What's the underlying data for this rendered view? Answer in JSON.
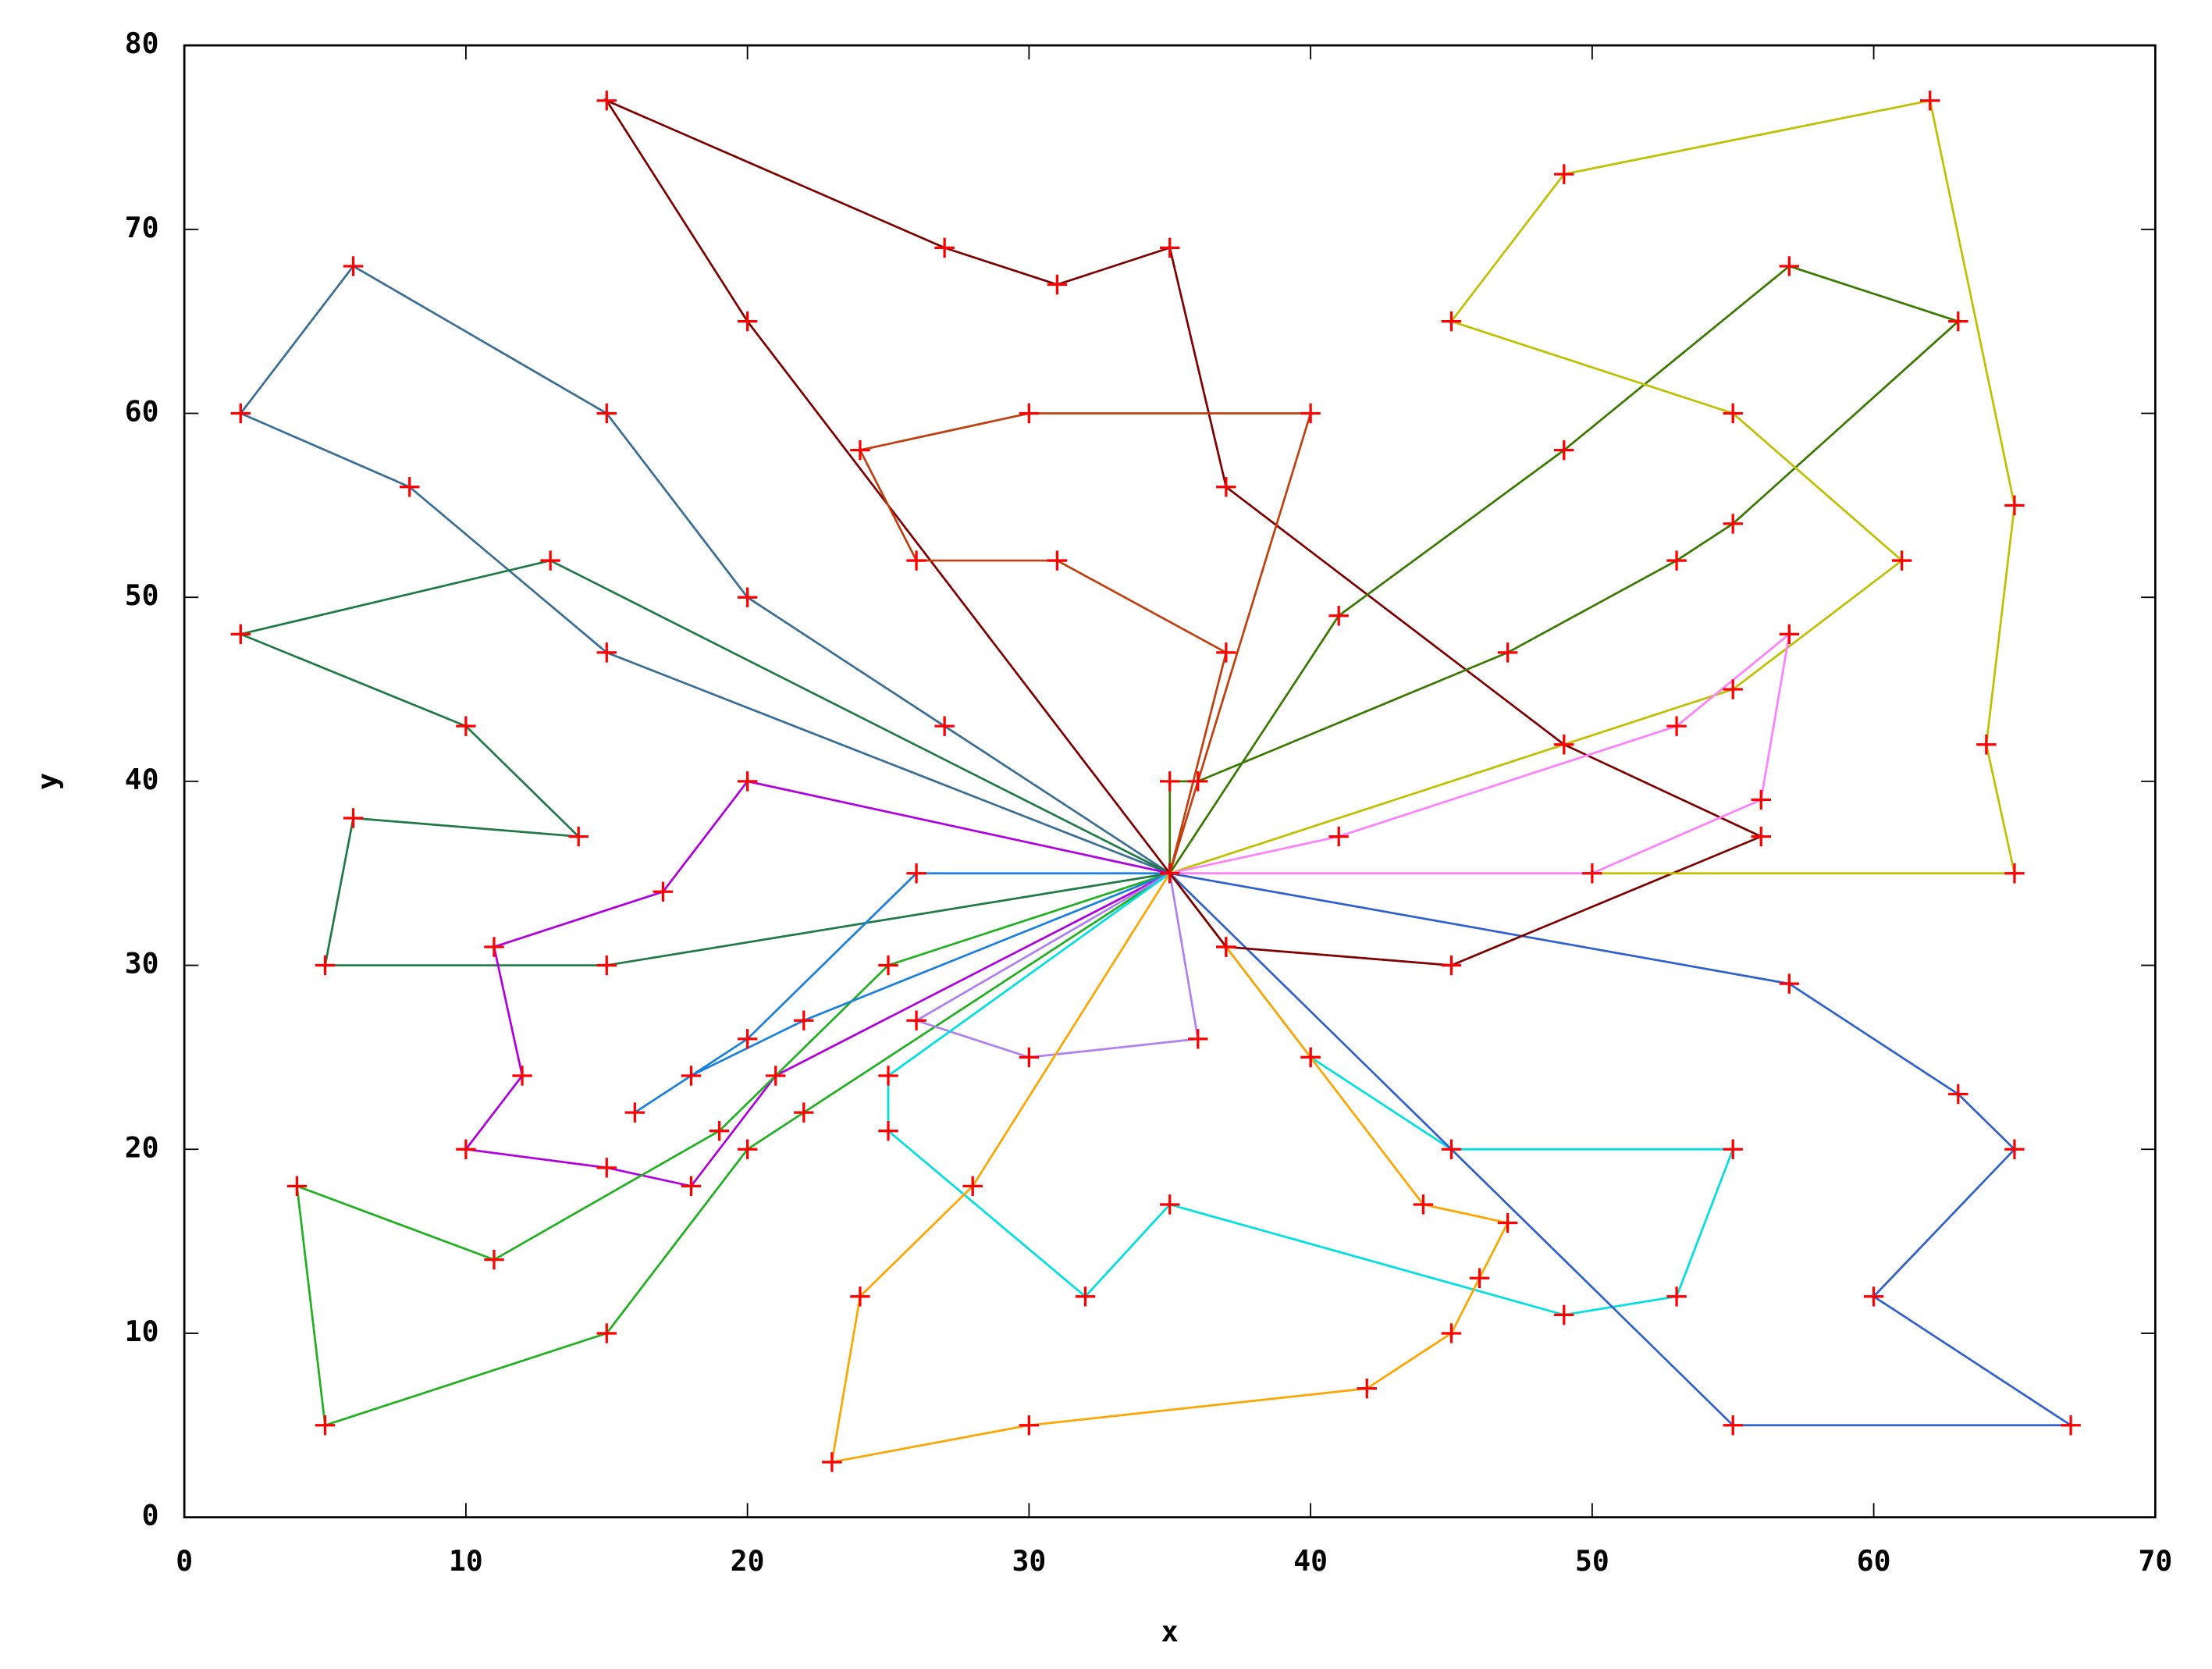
{
  "chart_data": {
    "type": "line",
    "xlabel": "x",
    "ylabel": "y",
    "xlim": [
      0,
      70
    ],
    "ylim": [
      0,
      80
    ],
    "xticks": [
      0,
      10,
      20,
      30,
      40,
      50,
      60,
      70
    ],
    "yticks": [
      0,
      10,
      20,
      30,
      40,
      50,
      60,
      70,
      80
    ],
    "grid": false,
    "marker_color": "#ff0000",
    "series": [
      {
        "color": "#3a6e96",
        "x": [
          35,
          27,
          20,
          15,
          6,
          2,
          8,
          15,
          35
        ],
        "y": [
          35,
          43,
          50,
          60,
          68,
          60,
          56,
          47,
          35
        ]
      },
      {
        "color": "#1f7a45",
        "x": [
          35,
          13,
          2,
          10,
          14,
          6,
          5,
          15,
          35
        ],
        "y": [
          35,
          52,
          48,
          43,
          37,
          38,
          30,
          30,
          35
        ]
      },
      {
        "color": "#b000e0",
        "x": [
          35,
          20,
          17,
          11,
          12,
          10,
          15,
          18,
          21,
          35
        ],
        "y": [
          35,
          40,
          34,
          31,
          24,
          20,
          19,
          18,
          24,
          35
        ]
      },
      {
        "color": "#20b020",
        "x": [
          35,
          25,
          19,
          11,
          4,
          5,
          15,
          20,
          22,
          35
        ],
        "y": [
          35,
          30,
          21,
          14,
          18,
          5,
          10,
          20,
          22,
          35
        ]
      },
      {
        "color": "#1a80e0",
        "x": [
          35,
          26,
          20,
          16,
          18,
          22,
          35
        ],
        "y": [
          35,
          35,
          26,
          22,
          24,
          27,
          35
        ]
      },
      {
        "color": "#b080f0",
        "x": [
          35,
          36,
          30,
          26,
          35
        ],
        "y": [
          35,
          26,
          25,
          27,
          35
        ]
      },
      {
        "color": "#00e0e0",
        "x": [
          35,
          25,
          25,
          32,
          35,
          49,
          53,
          55,
          45,
          40,
          35
        ],
        "y": [
          35,
          24,
          21,
          12,
          17,
          11,
          12,
          20,
          20,
          25,
          35
        ]
      },
      {
        "color": "#ffa500",
        "x": [
          35,
          37,
          40,
          44,
          47,
          46,
          45,
          42,
          30,
          23,
          24,
          28,
          35
        ],
        "y": [
          35,
          31,
          25,
          17,
          16,
          13,
          10,
          7,
          5,
          3,
          12,
          18,
          35
        ]
      },
      {
        "color": "#3060d0",
        "x": [
          35,
          57,
          63,
          65,
          60,
          67,
          55,
          35
        ],
        "y": [
          35,
          29,
          23,
          20,
          12,
          5,
          5,
          35
        ]
      },
      {
        "color": "#800000",
        "x": [
          35,
          37,
          45,
          56,
          49,
          37,
          35,
          31,
          27,
          15,
          20,
          35
        ],
        "y": [
          35,
          31,
          30,
          37,
          42,
          56,
          69,
          67,
          69,
          77,
          65,
          35
        ]
      },
      {
        "color": "#c04010",
        "x": [
          35,
          37,
          31,
          26,
          24,
          30,
          40,
          35
        ],
        "y": [
          35,
          47,
          52,
          52,
          58,
          60,
          60,
          35
        ]
      },
      {
        "color": "#3a7a00",
        "x": [
          35,
          35,
          36,
          47,
          53,
          55,
          63,
          57,
          49,
          41,
          35
        ],
        "y": [
          35,
          40,
          40,
          47,
          52,
          54,
          65,
          68,
          58,
          49,
          35
        ]
      },
      {
        "color": "#c0c000",
        "x": [
          35,
          65,
          64,
          65,
          62,
          49,
          45,
          55,
          61,
          55,
          35
        ],
        "y": [
          35,
          35,
          42,
          55,
          77,
          73,
          65,
          60,
          52,
          45,
          35
        ]
      },
      {
        "color": "#ff80ff",
        "x": [
          35,
          50,
          56,
          57,
          53,
          41,
          35
        ],
        "y": [
          35,
          35,
          39,
          48,
          43,
          37,
          35
        ]
      }
    ]
  }
}
